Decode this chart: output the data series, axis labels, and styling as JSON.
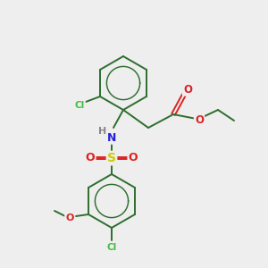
{
  "bg_color": "#eeeeee",
  "line_color": "#2d6e2d",
  "atom_colors": {
    "Cl": "#44bb44",
    "N": "#2222dd",
    "O": "#dd2222",
    "S": "#cccc00",
    "H": "#888888"
  },
  "lw": 1.4,
  "figsize": [
    3.0,
    3.0
  ],
  "dpi": 100
}
